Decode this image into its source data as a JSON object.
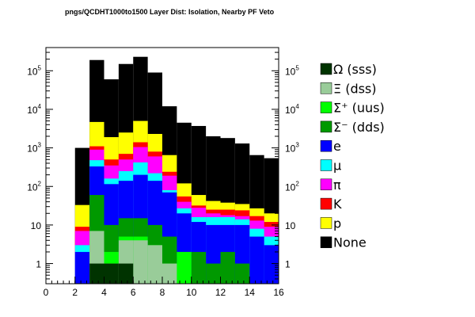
{
  "chart_data": {
    "type": "bar",
    "stacked": true,
    "title": "pngs/QCDHT1000to1500 Layer Dist: Isolation, Nearby PF Veto",
    "xlabel": "",
    "ylabel": "",
    "xlim": [
      0,
      16
    ],
    "ylim": [
      0.3,
      400000
    ],
    "ylog": true,
    "y_ticks": [
      {
        "value": 1,
        "base": "1",
        "exp": ""
      },
      {
        "value": 10,
        "base": "10",
        "exp": ""
      },
      {
        "value": 100,
        "base": "10",
        "exp": "2"
      },
      {
        "value": 1000,
        "base": "10",
        "exp": "3"
      },
      {
        "value": 10000,
        "base": "10",
        "exp": "4"
      },
      {
        "value": 100000,
        "base": "10",
        "exp": "5"
      }
    ],
    "x_ticks": [
      "0",
      "2",
      "4",
      "6",
      "8",
      "10",
      "12",
      "14",
      "16"
    ],
    "x_tick_values": [
      0,
      2,
      4,
      6,
      8,
      10,
      12,
      14,
      16
    ],
    "bin_edges": [
      0,
      1,
      2,
      3,
      4,
      5,
      6,
      7,
      8,
      9,
      10,
      11,
      12,
      13,
      14,
      15,
      16
    ],
    "legend_placement": "right",
    "series": [
      {
        "name": "Ω (sss)",
        "color": "#003300",
        "cumulative": [
          0,
          0,
          0,
          1,
          1,
          1,
          0,
          0,
          0,
          0,
          0,
          0,
          0,
          0,
          0,
          0
        ]
      },
      {
        "name": "Ξ (dss)",
        "color": "#99cc99",
        "cumulative": [
          0,
          0,
          0,
          7,
          1,
          4,
          4,
          3,
          1,
          0,
          0,
          0,
          0,
          0,
          0,
          0
        ]
      },
      {
        "name": "Σ⁺ (uus)",
        "color": "#00ff00",
        "cumulative": [
          0,
          0,
          0,
          7,
          2,
          5,
          5,
          3,
          1,
          2,
          0,
          0,
          0,
          0,
          0,
          0
        ]
      },
      {
        "name": "Σ⁻ (dds)",
        "color": "#009900",
        "cumulative": [
          0,
          0,
          0,
          60,
          10,
          15,
          15,
          10,
          5,
          2,
          2,
          1,
          2,
          1,
          0,
          0
        ]
      },
      {
        "name": "e",
        "color": "#0000ff",
        "cumulative": [
          0,
          0,
          2,
          330,
          115,
          140,
          200,
          140,
          70,
          20,
          12,
          10,
          10,
          10,
          5,
          3
        ]
      },
      {
        "name": "μ",
        "color": "#00ffff",
        "cumulative": [
          0,
          0,
          3,
          480,
          160,
          250,
          420,
          220,
          80,
          27,
          16,
          16,
          16,
          14,
          8,
          5
        ]
      },
      {
        "name": "π",
        "color": "#ff00ff",
        "cumulative": [
          0,
          0,
          7,
          900,
          350,
          500,
          1050,
          600,
          190,
          40,
          28,
          20,
          18,
          17,
          13,
          9
        ]
      },
      {
        "name": "K",
        "color": "#ff0000",
        "cumulative": [
          0,
          0,
          9,
          1100,
          500,
          700,
          1400,
          800,
          240,
          55,
          32,
          25,
          25,
          24,
          17,
          12
        ]
      },
      {
        "name": "p",
        "color": "#ffff00",
        "cumulative": [
          0,
          0,
          33,
          4700,
          1900,
          2500,
          5000,
          2300,
          650,
          120,
          60,
          42,
          38,
          35,
          27,
          20
        ]
      },
      {
        "name": "None",
        "color": "#000000",
        "cumulative": [
          0,
          0,
          1000,
          190000,
          60000,
          150000,
          230000,
          90000,
          12000,
          4500,
          3700,
          2000,
          1800,
          1300,
          650,
          540
        ]
      }
    ]
  }
}
